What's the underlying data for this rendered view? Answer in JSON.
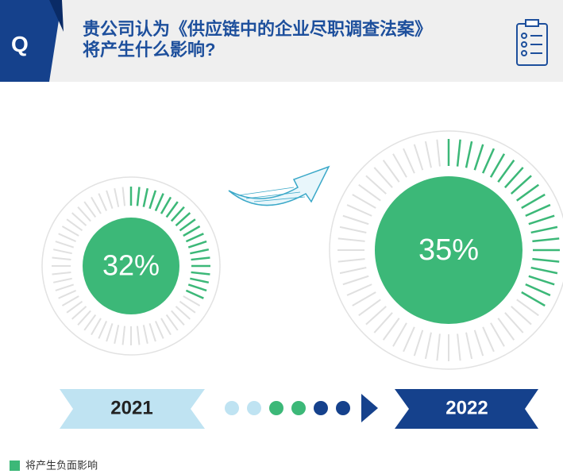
{
  "question_label": "Q",
  "chart_data": {
    "type": "radial-gauge",
    "title": "贵公司认为《供应链中的企业尽职调查法案》将产生什么影响?",
    "categories": [
      "2021",
      "2022"
    ],
    "series": [
      {
        "name": "将产生负面影响",
        "color": "#3cb878",
        "values": [
          32,
          35
        ],
        "value_labels": [
          "32%",
          "35%"
        ]
      }
    ],
    "ylim": [
      0,
      100
    ]
  }
}
